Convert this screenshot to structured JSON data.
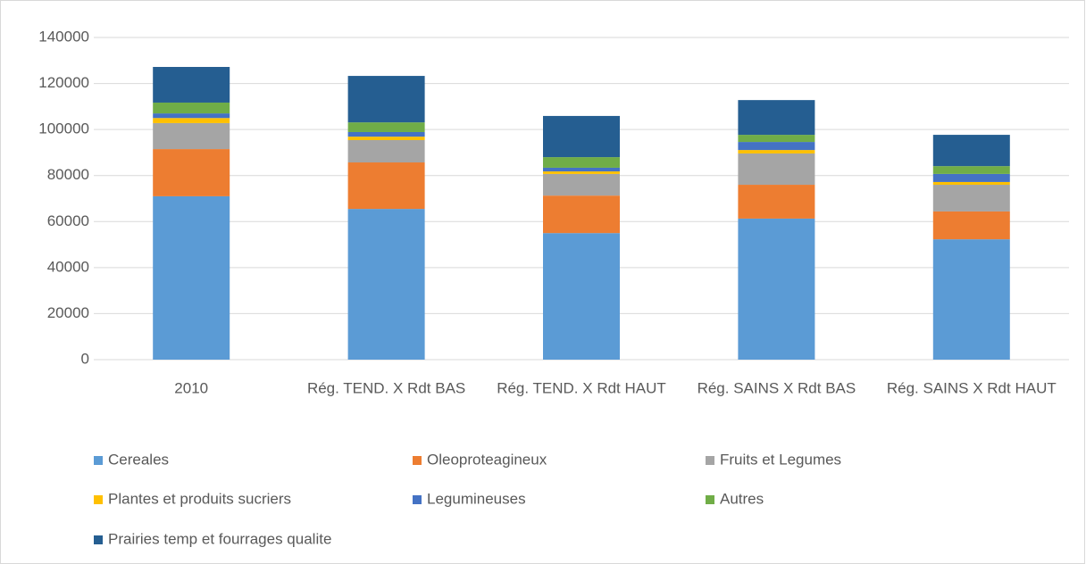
{
  "chart_data": {
    "type": "bar",
    "stacked": true,
    "categories": [
      "2010",
      "Rég. TEND. X Rdt BAS",
      "Rég. TEND. X Rdt HAUT",
      "Rég. SAINS X Rdt BAS",
      "Rég. SAINS X Rdt HAUT"
    ],
    "series": [
      {
        "name": "Cereales",
        "color": "#5b9bd5",
        "values": [
          71000,
          65500,
          55000,
          61300,
          52300
        ]
      },
      {
        "name": "Oleoproteagineux",
        "color": "#ed7d31",
        "values": [
          20500,
          20200,
          16300,
          14700,
          12100
        ]
      },
      {
        "name": "Fruits et Legumes",
        "color": "#a5a5a5",
        "values": [
          11300,
          9700,
          9400,
          13600,
          11600
        ]
      },
      {
        "name": "Plantes et produits sucriers",
        "color": "#ffc000",
        "values": [
          2200,
          1500,
          1100,
          1500,
          1200
        ]
      },
      {
        "name": "Legumineuses",
        "color": "#4472c4",
        "values": [
          2000,
          2000,
          1600,
          3500,
          3500
        ]
      },
      {
        "name": "Autres",
        "color": "#70ad47",
        "values": [
          4700,
          4200,
          4600,
          3100,
          3400
        ]
      },
      {
        "name": "Prairies temp et fourrages qualite",
        "color": "#255e91",
        "values": [
          15500,
          20200,
          17900,
          15100,
          13600
        ]
      }
    ],
    "ylim": [
      0,
      140000
    ],
    "yticks": [
      0,
      20000,
      40000,
      60000,
      80000,
      100000,
      120000,
      140000
    ],
    "grid": true,
    "legend": "bottom"
  }
}
